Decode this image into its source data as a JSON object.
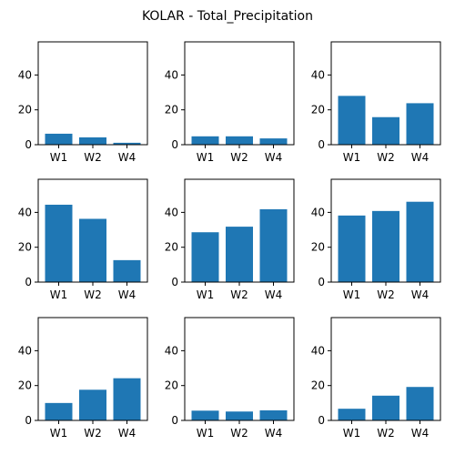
{
  "title": "KOLAR - Total_Precipitation",
  "chart_data": [
    {
      "type": "bar",
      "categories": [
        "W1",
        "W2",
        "W4"
      ],
      "values": [
        6.3,
        4.2,
        1.1
      ],
      "ylim": [
        0,
        59
      ],
      "yticks": [
        0,
        20,
        40
      ]
    },
    {
      "type": "bar",
      "categories": [
        "W1",
        "W2",
        "W4"
      ],
      "values": [
        4.8,
        4.8,
        3.6
      ],
      "ylim": [
        0,
        59
      ],
      "yticks": [
        0,
        20,
        40
      ]
    },
    {
      "type": "bar",
      "categories": [
        "W1",
        "W2",
        "W4"
      ],
      "values": [
        28.0,
        15.8,
        23.8
      ],
      "ylim": [
        0,
        59
      ],
      "yticks": [
        0,
        20,
        40
      ]
    },
    {
      "type": "bar",
      "categories": [
        "W1",
        "W2",
        "W4"
      ],
      "values": [
        44.4,
        36.3,
        12.6
      ],
      "ylim": [
        0,
        59
      ],
      "yticks": [
        0,
        20,
        40
      ]
    },
    {
      "type": "bar",
      "categories": [
        "W1",
        "W2",
        "W4"
      ],
      "values": [
        28.6,
        31.8,
        41.8
      ],
      "ylim": [
        0,
        59
      ],
      "yticks": [
        0,
        20,
        40
      ]
    },
    {
      "type": "bar",
      "categories": [
        "W1",
        "W2",
        "W4"
      ],
      "values": [
        38.2,
        40.8,
        46.1
      ],
      "ylim": [
        0,
        59
      ],
      "yticks": [
        0,
        20,
        40
      ]
    },
    {
      "type": "bar",
      "categories": [
        "W1",
        "W2",
        "W4"
      ],
      "values": [
        10.0,
        17.6,
        24.2
      ],
      "ylim": [
        0,
        59
      ],
      "yticks": [
        0,
        20,
        40
      ]
    },
    {
      "type": "bar",
      "categories": [
        "W1",
        "W2",
        "W4"
      ],
      "values": [
        5.6,
        5.1,
        5.8
      ],
      "ylim": [
        0,
        59
      ],
      "yticks": [
        0,
        20,
        40
      ]
    },
    {
      "type": "bar",
      "categories": [
        "W1",
        "W2",
        "W4"
      ],
      "values": [
        6.7,
        14.2,
        19.2
      ],
      "ylim": [
        0,
        59
      ],
      "yticks": [
        0,
        20,
        40
      ]
    }
  ],
  "colors": {
    "bar": "#1f77b4"
  }
}
